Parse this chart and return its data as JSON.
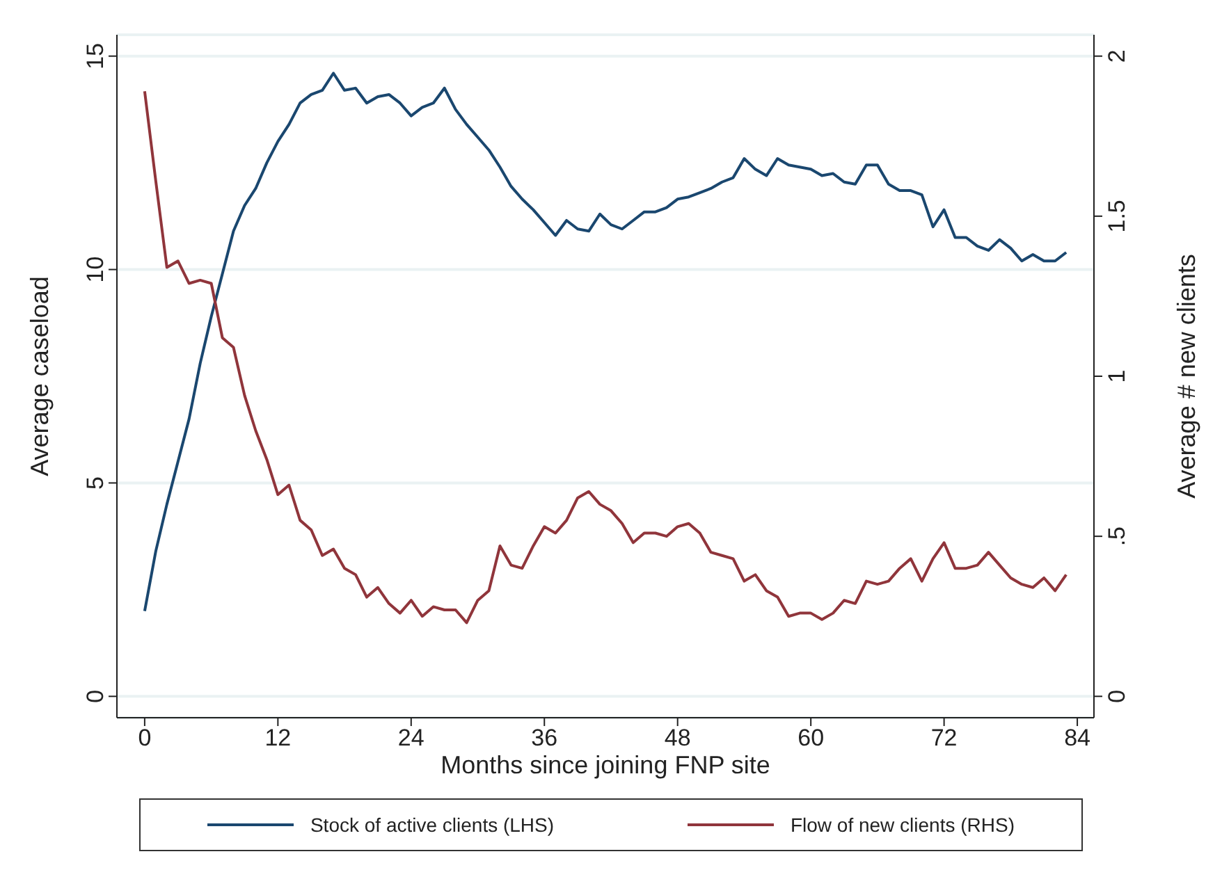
{
  "chart_data": {
    "type": "line",
    "xlabel": "Months since joining FNP site",
    "ylabel": "Average caseload",
    "y2label": "Average # new clients",
    "x": [
      0,
      1,
      2,
      3,
      4,
      5,
      6,
      7,
      8,
      9,
      10,
      11,
      12,
      13,
      14,
      15,
      16,
      17,
      18,
      19,
      20,
      21,
      22,
      23,
      24,
      25,
      26,
      27,
      28,
      29,
      30,
      31,
      32,
      33,
      34,
      35,
      36,
      37,
      38,
      39,
      40,
      41,
      42,
      43,
      44,
      45,
      46,
      47,
      48,
      49,
      50,
      51,
      52,
      53,
      54,
      55,
      56,
      57,
      58,
      59,
      60,
      61,
      62,
      63,
      64,
      65,
      66,
      67,
      68,
      69,
      70,
      71,
      72,
      73,
      74,
      75,
      76,
      77,
      78,
      79,
      80,
      81,
      82,
      83
    ],
    "series": [
      {
        "name": "Stock of active clients (LHS)",
        "color": "#1a476f",
        "values": [
          2.0,
          3.4,
          4.5,
          5.5,
          6.5,
          7.8,
          8.9,
          9.9,
          10.9,
          11.5,
          11.9,
          12.5,
          13.0,
          13.4,
          13.9,
          14.1,
          14.2,
          14.6,
          14.2,
          14.25,
          13.9,
          14.05,
          14.1,
          13.9,
          13.6,
          13.8,
          13.9,
          14.25,
          13.75,
          13.4,
          13.1,
          12.8,
          12.4,
          11.95,
          11.65,
          11.4,
          11.1,
          10.8,
          11.15,
          10.95,
          10.9,
          11.3,
          11.05,
          10.95,
          11.15,
          11.35,
          11.35,
          11.45,
          11.65,
          11.7,
          11.8,
          11.9,
          12.05,
          12.15,
          12.6,
          12.35,
          12.2,
          12.6,
          12.45,
          12.4,
          12.35,
          12.2,
          12.25,
          12.05,
          12.0,
          12.45,
          12.45,
          12.0,
          11.85,
          11.85,
          11.75,
          11.0,
          11.4,
          10.75,
          10.75,
          10.55,
          10.45,
          10.7,
          10.5,
          10.2,
          10.35,
          10.2,
          10.2,
          10.4
        ]
      },
      {
        "name": "Flow of new clients (RHS)",
        "color": "#90353b",
        "axis": "y2",
        "values": [
          1.89,
          1.61,
          1.34,
          1.36,
          1.29,
          1.3,
          1.29,
          1.12,
          1.09,
          0.94,
          0.83,
          0.74,
          0.63,
          0.66,
          0.55,
          0.52,
          0.44,
          0.46,
          0.4,
          0.38,
          0.31,
          0.34,
          0.29,
          0.26,
          0.3,
          0.25,
          0.28,
          0.27,
          0.27,
          0.23,
          0.3,
          0.33,
          0.47,
          0.41,
          0.4,
          0.47,
          0.53,
          0.51,
          0.55,
          0.62,
          0.64,
          0.6,
          0.58,
          0.54,
          0.48,
          0.51,
          0.51,
          0.5,
          0.53,
          0.54,
          0.51,
          0.45,
          0.44,
          0.43,
          0.36,
          0.38,
          0.33,
          0.31,
          0.25,
          0.26,
          0.26,
          0.24,
          0.26,
          0.3,
          0.29,
          0.36,
          0.35,
          0.36,
          0.4,
          0.43,
          0.36,
          0.43,
          0.48,
          0.4,
          0.4,
          0.41,
          0.45,
          0.41,
          0.37,
          0.35,
          0.34,
          0.37,
          0.33,
          0.38
        ]
      }
    ],
    "xlim": [
      -2.5,
      85.5
    ],
    "xticks": [
      0,
      12,
      24,
      36,
      48,
      60,
      72,
      84
    ],
    "ylim": [
      -0.5,
      15.5
    ],
    "yticks": [
      0,
      5,
      10,
      15
    ],
    "y2lim": [
      -0.0667,
      2.0667
    ],
    "y2ticks": [
      0,
      {
        "value": 0.5,
        "label": ".5"
      },
      1,
      1.5,
      2
    ],
    "grid": "y",
    "legend": "bottom",
    "line_style": "solid"
  }
}
